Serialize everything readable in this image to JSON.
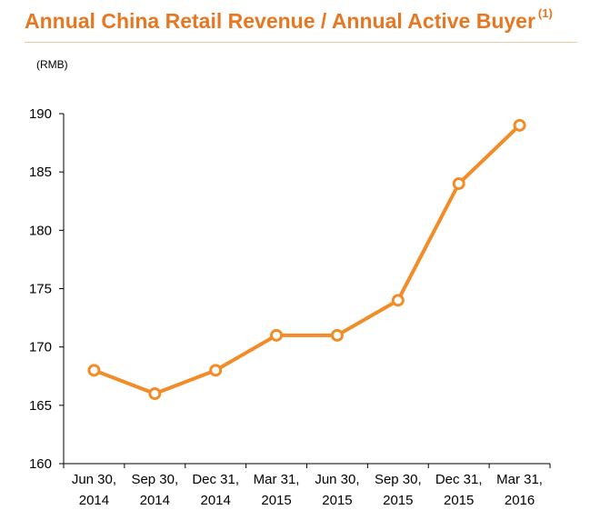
{
  "title": "Annual China Retail Revenue / Annual Active Buyer",
  "title_footnote": "(1)",
  "unit": "(RMB)",
  "colors": {
    "accent": "#E87722",
    "line": "#F28C28",
    "axis": "#000000"
  },
  "chart_data": {
    "type": "line",
    "title": "Annual China Retail Revenue / Annual Active Buyer",
    "ylabel": "(RMB)",
    "xlabel": "",
    "ylim": [
      160,
      190
    ],
    "yticks": [
      160,
      165,
      170,
      175,
      180,
      185,
      190
    ],
    "categories": [
      [
        "Jun 30,",
        "2014"
      ],
      [
        "Sep 30,",
        "2014"
      ],
      [
        "Dec 31,",
        "2014"
      ],
      [
        "Mar 31,",
        "2015"
      ],
      [
        "Jun 30,",
        "2015"
      ],
      [
        "Sep 30,",
        "2015"
      ],
      [
        "Dec 31,",
        "2015"
      ],
      [
        "Mar 31,",
        "2016"
      ]
    ],
    "series": [
      {
        "values": [
          168,
          166,
          168,
          171,
          171,
          174,
          184,
          189
        ]
      }
    ],
    "grid": false,
    "legend": "none"
  }
}
